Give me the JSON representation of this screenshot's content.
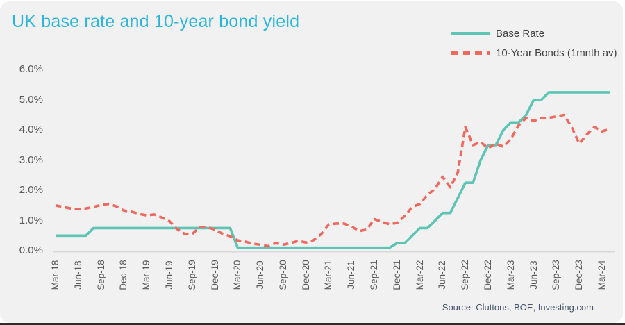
{
  "header": {
    "title": "UK base rate and 10-year bond yield"
  },
  "legend": [
    {
      "label": "Base Rate",
      "color": "#5EC4B3",
      "dash": false
    },
    {
      "label": "10-Year Bonds (1mnth av)",
      "color": "#F0695E",
      "dash": true
    }
  ],
  "source": {
    "text": "Source: Cluttons,  BOE, Investing.com"
  },
  "colors": {
    "title": "#29B5DC",
    "base_rate_line": "#5EC4B3",
    "bond_line": "#F0695E",
    "axis_label": "#595959",
    "axis_line": "#D9D9D9",
    "card_background": "#F1F1F2"
  },
  "chart_data": {
    "type": "line",
    "title": "UK base rate and 10-year bond yield",
    "xlabel": "",
    "ylabel": "",
    "ylim": [
      0,
      6
    ],
    "yticks": [
      "0.0%",
      "1.0%",
      "2.0%",
      "3.0%",
      "4.0%",
      "5.0%",
      "6.0%"
    ],
    "grid": false,
    "legend_position": "top-right",
    "xtick_every": 3,
    "categories": [
      "Mar-18",
      "Apr-18",
      "May-18",
      "Jun-18",
      "Jul-18",
      "Aug-18",
      "Sep-18",
      "Oct-18",
      "Nov-18",
      "Dec-18",
      "Jan-19",
      "Feb-19",
      "Mar-19",
      "Apr-19",
      "May-19",
      "Jun-19",
      "Jul-19",
      "Aug-19",
      "Sep-19",
      "Oct-19",
      "Nov-19",
      "Dec-19",
      "Jan-20",
      "Feb-20",
      "Mar-20",
      "Apr-20",
      "May-20",
      "Jun-20",
      "Jul-20",
      "Aug-20",
      "Sep-20",
      "Oct-20",
      "Nov-20",
      "Dec-20",
      "Jan-21",
      "Feb-21",
      "Mar-21",
      "Apr-21",
      "May-21",
      "Jun-21",
      "Jul-21",
      "Aug-21",
      "Sep-21",
      "Oct-21",
      "Nov-21",
      "Dec-21",
      "Jan-22",
      "Feb-22",
      "Mar-22",
      "Apr-22",
      "May-22",
      "Jun-22",
      "Jul-22",
      "Aug-22",
      "Sep-22",
      "Oct-22",
      "Nov-22",
      "Dec-22",
      "Jan-23",
      "Feb-23",
      "Mar-23",
      "Apr-23",
      "May-23",
      "Jun-23",
      "Jul-23",
      "Aug-23",
      "Sep-23",
      "Oct-23",
      "Nov-23",
      "Dec-23",
      "Jan-24",
      "Feb-24",
      "Mar-24",
      "Apr-24"
    ],
    "series": [
      {
        "name": "Base Rate",
        "color": "#5EC4B3",
        "style": "solid",
        "values": [
          0.5,
          0.5,
          0.5,
          0.5,
          0.5,
          0.75,
          0.75,
          0.75,
          0.75,
          0.75,
          0.75,
          0.75,
          0.75,
          0.75,
          0.75,
          0.75,
          0.75,
          0.75,
          0.75,
          0.75,
          0.75,
          0.75,
          0.75,
          0.75,
          0.1,
          0.1,
          0.1,
          0.1,
          0.1,
          0.1,
          0.1,
          0.1,
          0.1,
          0.1,
          0.1,
          0.1,
          0.1,
          0.1,
          0.1,
          0.1,
          0.1,
          0.1,
          0.1,
          0.1,
          0.1,
          0.25,
          0.25,
          0.5,
          0.75,
          0.75,
          1.0,
          1.25,
          1.25,
          1.75,
          2.25,
          2.25,
          3.0,
          3.5,
          3.5,
          4.0,
          4.25,
          4.25,
          4.5,
          5.0,
          5.0,
          5.25,
          5.25,
          5.25,
          5.25,
          5.25,
          5.25,
          5.25,
          5.25,
          5.25
        ]
      },
      {
        "name": "10-Year Bonds (1mnth av)",
        "color": "#F0695E",
        "style": "dashed",
        "values": [
          1.5,
          1.45,
          1.4,
          1.38,
          1.4,
          1.45,
          1.52,
          1.55,
          1.47,
          1.33,
          1.29,
          1.22,
          1.17,
          1.2,
          1.1,
          0.98,
          0.72,
          0.56,
          0.55,
          0.78,
          0.78,
          0.7,
          0.56,
          0.48,
          0.34,
          0.3,
          0.23,
          0.2,
          0.15,
          0.25,
          0.2,
          0.25,
          0.33,
          0.27,
          0.35,
          0.55,
          0.87,
          0.9,
          0.9,
          0.8,
          0.65,
          0.7,
          1.05,
          0.95,
          0.88,
          0.92,
          1.15,
          1.45,
          1.55,
          1.85,
          2.05,
          2.45,
          2.1,
          2.6,
          4.1,
          3.5,
          3.6,
          3.4,
          3.55,
          3.45,
          3.7,
          4.15,
          4.4,
          4.3,
          4.4,
          4.4,
          4.45,
          4.5,
          4.1,
          3.55,
          3.85,
          4.1,
          3.95,
          4.05
        ]
      }
    ]
  }
}
